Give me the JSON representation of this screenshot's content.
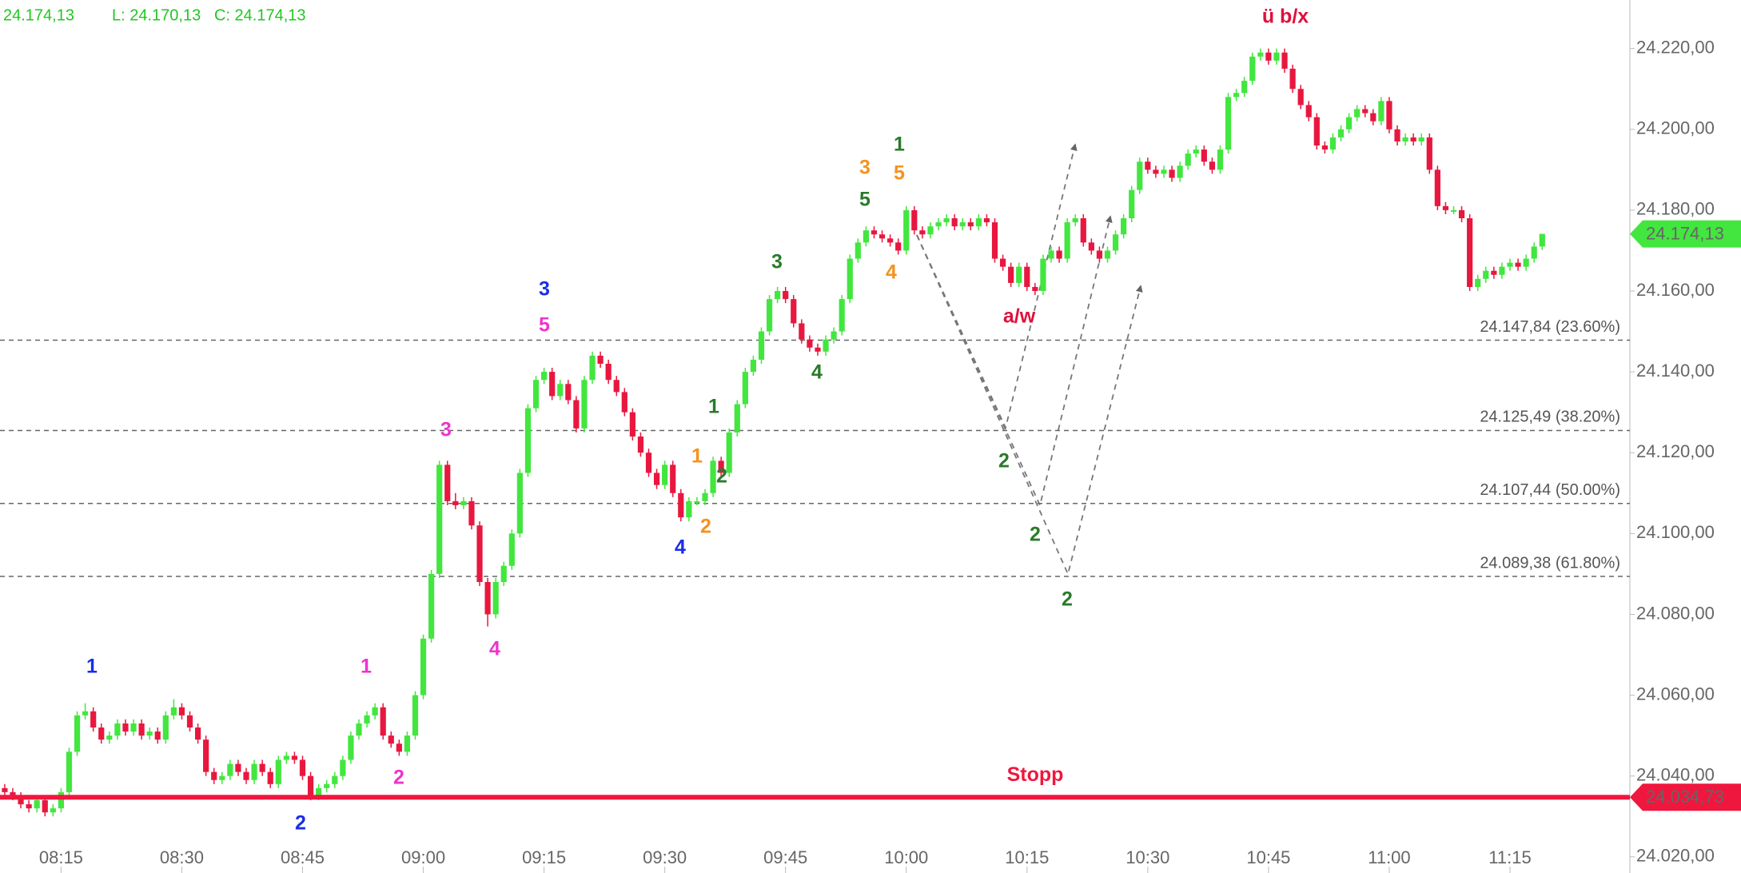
{
  "chart_data": {
    "type": "candlestick",
    "header": [
      "24.174,13",
      "L: 24.170,13",
      "C: 24.174,13"
    ],
    "categories": [
      null,
      null,
      null,
      null,
      null,
      null,
      null,
      "08:15",
      null,
      null,
      null,
      null,
      null,
      null,
      null,
      null,
      null,
      null,
      null,
      null,
      null,
      null,
      "08:30",
      null,
      null,
      null,
      null,
      null,
      null,
      null,
      null,
      null,
      null,
      null,
      null,
      null,
      null,
      "08:45",
      null,
      null,
      null,
      null,
      null,
      null,
      null,
      null,
      null,
      null,
      null,
      null,
      null,
      null,
      "09:00",
      null,
      null,
      null,
      null,
      null,
      null,
      null,
      null,
      null,
      null,
      null,
      null,
      null,
      null,
      "09:15",
      null,
      null,
      null,
      null,
      null,
      null,
      null,
      null,
      null,
      null,
      null,
      null,
      null,
      null,
      "09:30",
      null,
      null,
      null,
      null,
      null,
      null,
      null,
      null,
      null,
      null,
      null,
      null,
      null,
      null,
      "09:45",
      null,
      null,
      null,
      null,
      null,
      null,
      null,
      null,
      null,
      null,
      null,
      null,
      null,
      null,
      "10:00",
      null,
      null,
      null,
      null,
      null,
      null,
      null,
      null,
      null,
      null,
      null,
      null,
      null,
      null,
      "10:15",
      null,
      null,
      null,
      null,
      null,
      null,
      null,
      null,
      null,
      null,
      null,
      null,
      null,
      null,
      "10:30",
      null,
      null,
      null,
      null,
      null,
      null,
      null,
      null,
      null,
      null,
      null,
      null,
      null,
      null,
      "10:45",
      null,
      null,
      null,
      null,
      null,
      null,
      null,
      null,
      null,
      null,
      null,
      null,
      null,
      null,
      "11:00",
      null,
      null,
      null,
      null,
      null,
      null,
      null,
      null,
      null,
      null,
      null,
      null,
      null,
      null,
      "11:15",
      null,
      null,
      null,
      null
    ],
    "open": [
      24037,
      24036,
      24035,
      24033,
      24032,
      24034,
      24031,
      24032,
      24036,
      24046,
      24055,
      24056,
      24052,
      24049,
      24050,
      24053,
      24051,
      24053,
      24050,
      24051,
      24049,
      24055,
      24057,
      24055,
      24052,
      24049,
      24041,
      24039,
      24040,
      24043,
      24041,
      24039,
      24043,
      24041,
      24038,
      24044,
      24045,
      24044,
      24040,
      24035,
      24037,
      24038,
      24040,
      24044,
      24050,
      24053,
      24055,
      24057,
      24050,
      24048,
      24046,
      24050,
      24060,
      24074,
      24090,
      24117,
      24108,
      24107,
      24108,
      24102,
      24088,
      24080,
      24088,
      24092,
      24100,
      24115,
      24131,
      24138,
      24140,
      24134,
      24137,
      24133,
      24126,
      24138,
      24144,
      24142,
      24138,
      24135,
      24130,
      24124,
      24120,
      24115,
      24112,
      24117,
      24110,
      24104,
      24108,
      24108,
      24110,
      24118,
      24115,
      24125,
      24132,
      24140,
      24143,
      24150,
      24158,
      24160,
      24158,
      24152,
      24148,
      24146,
      24145,
      24148,
      24150,
      24158,
      24168,
      24172,
      24175,
      24174,
      24173,
      24172,
      24170,
      24180,
      24175,
      24174,
      24176,
      24177,
      24178,
      24176,
      24177,
      24176,
      24178,
      24177,
      24168,
      24166,
      24162,
      24166,
      24161,
      24160,
      24168,
      24170,
      24168,
      24177,
      24178,
      24172,
      24170,
      24168,
      24170,
      24174,
      24178,
      24185,
      24192,
      24190,
      24189,
      24190,
      24188,
      24191,
      24194,
      24195,
      24192,
      24190,
      24195,
      24208,
      24209,
      24212,
      24218,
      24219,
      24217,
      24219,
      24215,
      24210,
      24206,
      24203,
      24196,
      24195,
      24198,
      24200,
      24203,
      24205,
      24204,
      24202,
      24207,
      24200,
      24197,
      24198,
      24197,
      24198,
      24190,
      24181,
      24180,
      24180,
      24178,
      24161,
      24163,
      24165,
      24164,
      24166,
      24167,
      24166,
      24168,
      24171
    ],
    "high": [
      24038,
      24037,
      24036,
      24034,
      24035,
      24035,
      24033,
      24037,
      24047,
      24056,
      24058,
      24057,
      24053,
      24051,
      24054,
      24054,
      24054,
      24054,
      24052,
      24052,
      24056,
      24059,
      24058,
      24056,
      24053,
      24050,
      24042,
      24041,
      24044,
      24044,
      24042,
      24044,
      24044,
      24042,
      24045,
      24046,
      24046,
      24045,
      24041,
      24038,
      24039,
      24041,
      24045,
      24051,
      24054,
      24056,
      24058,
      24058,
      24051,
      24049,
      24051,
      24061,
      24075,
      24091,
      24118,
      24118,
      24110,
      24109,
      24109,
      24103,
      24089,
      24089,
      24093,
      24101,
      24116,
      24132,
      24139,
      24141,
      24141,
      24138,
      24138,
      24134,
      24139,
      24145,
      24145,
      24143,
      24139,
      24136,
      24131,
      24125,
      24121,
      24116,
      24118,
      24118,
      24111,
      24109,
      24109,
      24111,
      24119,
      24119,
      24126,
      24133,
      24141,
      24144,
      24151,
      24159,
      24161,
      24161,
      24159,
      24153,
      24149,
      24147,
      24149,
      24151,
      24159,
      24169,
      24173,
      24176,
      24176,
      24175,
      24174,
      24173,
      24181,
      24181,
      24176,
      24177,
      24178,
      24179,
      24179,
      24178,
      24178,
      24179,
      24179,
      24178,
      24169,
      24167,
      24167,
      24167,
      24162,
      24169,
      24171,
      24171,
      24178,
      24179,
      24179,
      24173,
      24171,
      24171,
      24175,
      24179,
      24186,
      24193,
      24193,
      24191,
      24191,
      24191,
      24192,
      24195,
      24196,
      24196,
      24193,
      24196,
      24209,
      24210,
      24213,
      24219,
      24220,
      24220,
      24220,
      24220,
      24216,
      24211,
      24207,
      24204,
      24197,
      24199,
      24201,
      24204,
      24206,
      24206,
      24205,
      24208,
      24208,
      24201,
      24199,
      24199,
      24199,
      24199,
      24191,
      24182,
      24181,
      24181,
      24179,
      24164,
      24166,
      24166,
      24167,
      24168,
      24168,
      24169,
      24172,
      24174.13
    ],
    "low": [
      24035,
      24034,
      24032,
      24031,
      24031,
      24030,
      24030,
      24031,
      24035,
      24045,
      24054,
      24051,
      24048,
      24048,
      24049,
      24050,
      24050,
      24049,
      24049,
      24048,
      24048,
      24054,
      24054,
      24051,
      24048,
      24040,
      24038,
      24038,
      24039,
      24040,
      24038,
      24038,
      24040,
      24037,
      24037,
      24043,
      24043,
      24039,
      24034,
      24034,
      24036,
      24037,
      24039,
      24043,
      24049,
      24052,
      24054,
      24049,
      24047,
      24045,
      24045,
      24049,
      24059,
      24073,
      24089,
      24107,
      24106,
      24106,
      24101,
      24087,
      24077,
      24079,
      24087,
      24091,
      24099,
      24114,
      24130,
      24137,
      24133,
      24133,
      24132,
      24125,
      24125,
      24137,
      24141,
      24137,
      24134,
      24129,
      24123,
      24119,
      24114,
      24111,
      24111,
      24109,
      24103,
      24103,
      24107,
      24107,
      24109,
      24114,
      24114,
      24124,
      24131,
      24139,
      24142,
      24149,
      24157,
      24157,
      24151,
      24147,
      24145,
      24144,
      24144,
      24147,
      24149,
      24157,
      24167,
      24171,
      24173,
      24172,
      24171,
      24169,
      24169,
      24174,
      24173,
      24173,
      24175,
      24176,
      24175,
      24175,
      24175,
      24175,
      24176,
      24167,
      24165,
      24161,
      24161,
      24160,
      24159,
      24159,
      24167,
      24167,
      24167,
      24176,
      24171,
      24169,
      24167,
      24167,
      24169,
      24173,
      24177,
      24184,
      24189,
      24188,
      24188,
      24187,
      24187,
      24190,
      24193,
      24191,
      24189,
      24189,
      24194,
      24207,
      24208,
      24211,
      24217,
      24216,
      24216,
      24214,
      24209,
      24205,
      24202,
      24195,
      24194,
      24194,
      24197,
      24199,
      24202,
      24203,
      24201,
      24201,
      24199,
      24196,
      24196,
      24196,
      24196,
      24189,
      24180,
      24179,
      24179,
      24177,
      24160,
      24160,
      24162,
      24163,
      24163,
      24165,
      24165,
      24165,
      24167,
      24170.13
    ],
    "close": [
      24036,
      24035,
      24033,
      24032,
      24034,
      24031,
      24032,
      24036,
      24046,
      24055,
      24056,
      24052,
      24049,
      24050,
      24053,
      24051,
      24053,
      24050,
      24051,
      24049,
      24055,
      24057,
      24055,
      24052,
      24049,
      24041,
      24039,
      24040,
      24043,
      24041,
      24039,
      24043,
      24041,
      24038,
      24044,
      24045,
      24044,
      24040,
      24035,
      24037,
      24038,
      24040,
      24044,
      24050,
      24053,
      24055,
      24057,
      24050,
      24048,
      24046,
      24050,
      24060,
      24074,
      24090,
      24117,
      24108,
      24107,
      24108,
      24102,
      24088,
      24080,
      24088,
      24092,
      24100,
      24115,
      24131,
      24138,
      24140,
      24134,
      24137,
      24133,
      24126,
      24138,
      24144,
      24142,
      24138,
      24135,
      24130,
      24124,
      24120,
      24115,
      24112,
      24117,
      24110,
      24104,
      24108,
      24108,
      24110,
      24118,
      24115,
      24125,
      24132,
      24140,
      24143,
      24150,
      24158,
      24160,
      24158,
      24152,
      24148,
      24146,
      24145,
      24148,
      24150,
      24158,
      24168,
      24172,
      24175,
      24174,
      24173,
      24172,
      24170,
      24180,
      24175,
      24174,
      24176,
      24177,
      24178,
      24176,
      24177,
      24176,
      24178,
      24177,
      24168,
      24166,
      24162,
      24166,
      24161,
      24160,
      24168,
      24170,
      24168,
      24177,
      24178,
      24172,
      24170,
      24168,
      24170,
      24174,
      24178,
      24185,
      24192,
      24190,
      24189,
      24190,
      24188,
      24191,
      24194,
      24195,
      24192,
      24190,
      24195,
      24208,
      24209,
      24212,
      24218,
      24219,
      24217,
      24219,
      24215,
      24210,
      24206,
      24203,
      24196,
      24195,
      24198,
      24200,
      24203,
      24205,
      24204,
      24202,
      24207,
      24200,
      24197,
      24198,
      24197,
      24198,
      24190,
      24181,
      24180,
      24180,
      24178,
      24161,
      24163,
      24165,
      24164,
      24166,
      24167,
      24166,
      24168,
      24171,
      24174.13
    ],
    "up_color": "#42e63f",
    "down_color": "#e8173f",
    "ylim": [
      24016,
      24232
    ],
    "yticks": [
      {
        "value": 24020,
        "label": "24.020,00"
      },
      {
        "value": 24040,
        "label": "24.040,00"
      },
      {
        "value": 24060,
        "label": "24.060,00"
      },
      {
        "value": 24080,
        "label": "24.080,00"
      },
      {
        "value": 24100,
        "label": "24.100,00"
      },
      {
        "value": 24120,
        "label": "24.120,00"
      },
      {
        "value": 24140,
        "label": "24.140,00"
      },
      {
        "value": 24160,
        "label": "24.160,00"
      },
      {
        "value": 24180,
        "label": "24.180,00"
      },
      {
        "value": 24200,
        "label": "24.200,00"
      },
      {
        "value": 24220,
        "label": "24.220,00"
      }
    ],
    "levels": [
      {
        "value": 24147.84,
        "label": "24.147,84 (23.60%)"
      },
      {
        "value": 24125.49,
        "label": "24.125,49 (38.20%)"
      },
      {
        "value": 24107.44,
        "label": "24.107,44 (50.00%)"
      },
      {
        "value": 24089.38,
        "label": "24.089,38 (61.80%)"
      }
    ],
    "stop": {
      "name": "Stopp",
      "value": 24034.73,
      "label": "24.034,73",
      "color": "#f0173f"
    },
    "last": {
      "value": 24174.13,
      "label": "24.174,13",
      "color": "#42e63f"
    },
    "annotations": [
      {
        "text": "1",
        "color": "#1a2ee6"
      },
      {
        "text": "2",
        "color": "#1a2ee6"
      },
      {
        "text": "3",
        "color": "#1a2ee6"
      },
      {
        "text": "4",
        "color": "#1a2ee6"
      },
      {
        "text": "1",
        "color": "#ee33cc"
      },
      {
        "text": "2",
        "color": "#ee33cc"
      },
      {
        "text": "3",
        "color": "#ee33cc"
      },
      {
        "text": "4",
        "color": "#ee33cc"
      },
      {
        "text": "5",
        "color": "#ee33cc"
      },
      {
        "text": "1",
        "color": "#f5921e"
      },
      {
        "text": "2",
        "color": "#f5921e"
      },
      {
        "text": "3",
        "color": "#f5921e"
      },
      {
        "text": "4",
        "color": "#f5921e"
      },
      {
        "text": "5",
        "color": "#f5921e"
      },
      {
        "text": "1",
        "color": "#2a7a2a"
      },
      {
        "text": "2",
        "color": "#2a7a2a"
      },
      {
        "text": "3",
        "color": "#2a7a2a"
      },
      {
        "text": "4",
        "color": "#2a7a2a"
      },
      {
        "text": "5",
        "color": "#2a7a2a"
      },
      {
        "text": "1",
        "color": "#2a7a2a"
      },
      {
        "text": "2",
        "color": "#2a7a2a"
      },
      {
        "text": "2",
        "color": "#2a7a2a"
      },
      {
        "text": "2",
        "color": "#2a7a2a"
      },
      {
        "text": "a/w",
        "color": "#e0103c"
      },
      {
        "text": "ü b/x",
        "color": "#e0103c"
      }
    ]
  }
}
